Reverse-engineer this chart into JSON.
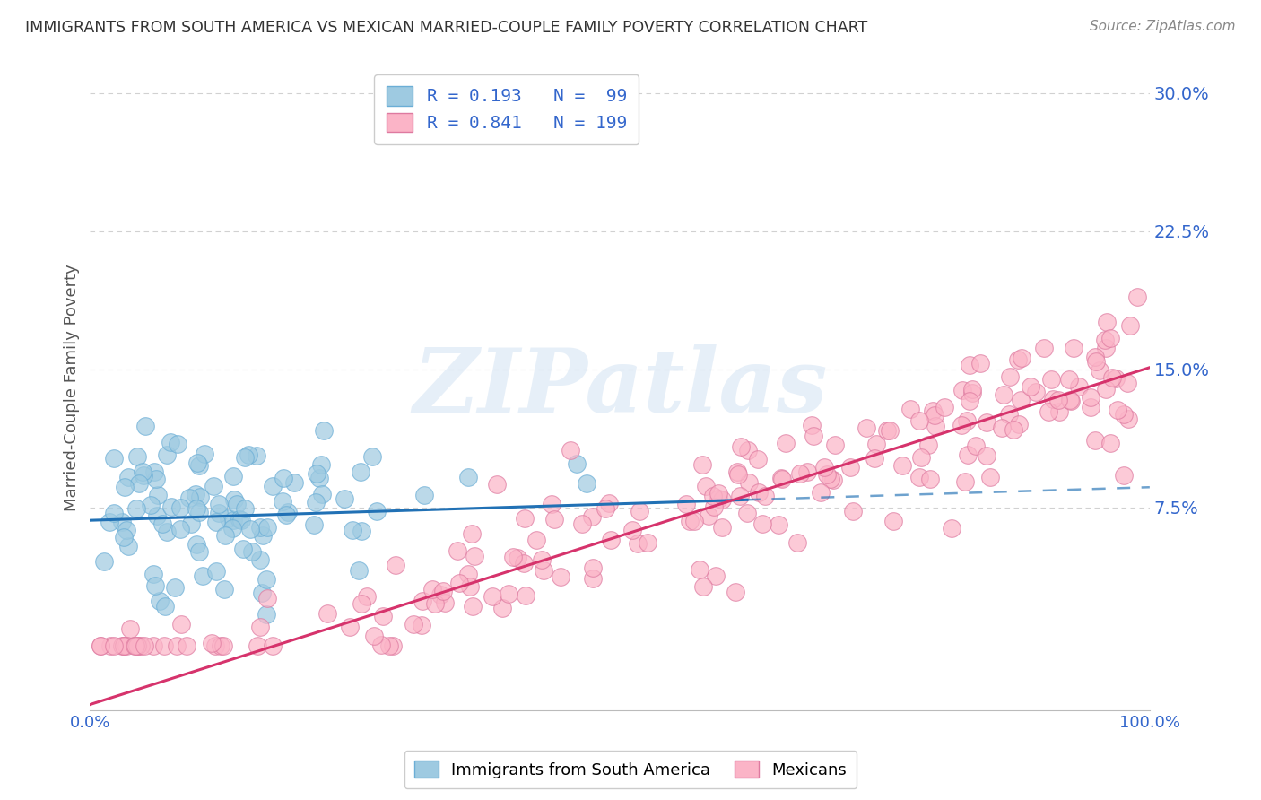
{
  "title": "IMMIGRANTS FROM SOUTH AMERICA VS MEXICAN MARRIED-COUPLE FAMILY POVERTY CORRELATION CHART",
  "source": "Source: ZipAtlas.com",
  "ylabel": "Married-Couple Family Poverty",
  "xmin": 0.0,
  "xmax": 1.0,
  "ymin": -0.035,
  "ymax": 0.315,
  "yticks": [
    0.075,
    0.15,
    0.225,
    0.3
  ],
  "ytick_labels": [
    "7.5%",
    "15.0%",
    "22.5%",
    "30.0%"
  ],
  "xtick_positions": [
    0.0,
    0.25,
    0.5,
    0.75,
    1.0
  ],
  "xtick_labels": [
    "0.0%",
    "",
    "",
    "",
    "100.0%"
  ],
  "watermark": "ZIPatlas",
  "blue_scatter_color": "#9ecae1",
  "blue_edge_color": "#6baed6",
  "pink_scatter_color": "#fbb4c7",
  "pink_edge_color": "#de7aa0",
  "blue_line_color": "#2171b5",
  "pink_line_color": "#d6336c",
  "background_color": "#ffffff",
  "grid_color": "#cccccc",
  "title_color": "#333333",
  "label_color": "#3366cc",
  "seed": 42,
  "n_blue": 99,
  "n_pink": 199,
  "blue_line_x_solid_end": 0.62,
  "blue_line_x_start": 0.0,
  "blue_line_x_end": 1.0,
  "pink_line_x_start": 0.0,
  "pink_line_x_end": 1.0,
  "pink_line_intercept": -0.032,
  "pink_line_slope": 0.183,
  "blue_line_intercept": 0.068,
  "blue_line_slope": 0.018
}
